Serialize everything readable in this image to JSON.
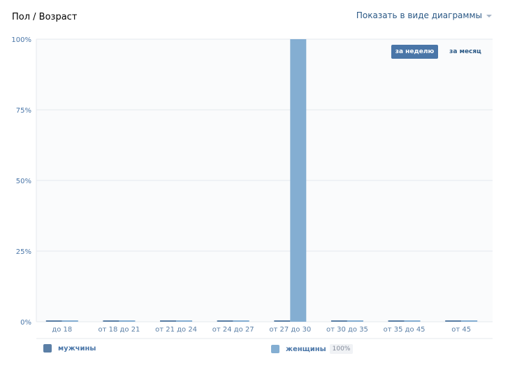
{
  "header": {
    "title": "Пол / Возраст",
    "view_toggle": "Показать в виде диаграммы"
  },
  "period_tabs": [
    {
      "label": "за неделю",
      "active": true
    },
    {
      "label": "за месяц",
      "active": false
    }
  ],
  "legend": {
    "men": {
      "label": "мужчины"
    },
    "women": {
      "label": "женщины",
      "percent": "100%"
    }
  },
  "colors": {
    "men": "#5b7fa6",
    "women": "#84aed2",
    "tick_text": "#4a76a8",
    "category_text": "#5b7fa6",
    "grid": "#e4e8ee",
    "plot_bg": "#fafbfc",
    "accent": "#4a76a8"
  },
  "chart_data": {
    "type": "bar",
    "categories": [
      "до 18",
      "от 18 до 21",
      "от 21 до 24",
      "от 24 до 27",
      "от 27 до 30",
      "от 30 до 35",
      "от 35 до 45",
      "от 45"
    ],
    "series": [
      {
        "name": "мужчины",
        "values": [
          0,
          0,
          0,
          0,
          0,
          0,
          0,
          0
        ]
      },
      {
        "name": "женщины",
        "values": [
          0,
          0,
          0,
          0,
          100,
          0,
          0,
          0
        ]
      }
    ],
    "yticks": [
      "0%",
      "25%",
      "50%",
      "75%",
      "100%"
    ],
    "ylim": [
      0,
      100
    ],
    "grid": true,
    "legend_position": "bottom"
  }
}
